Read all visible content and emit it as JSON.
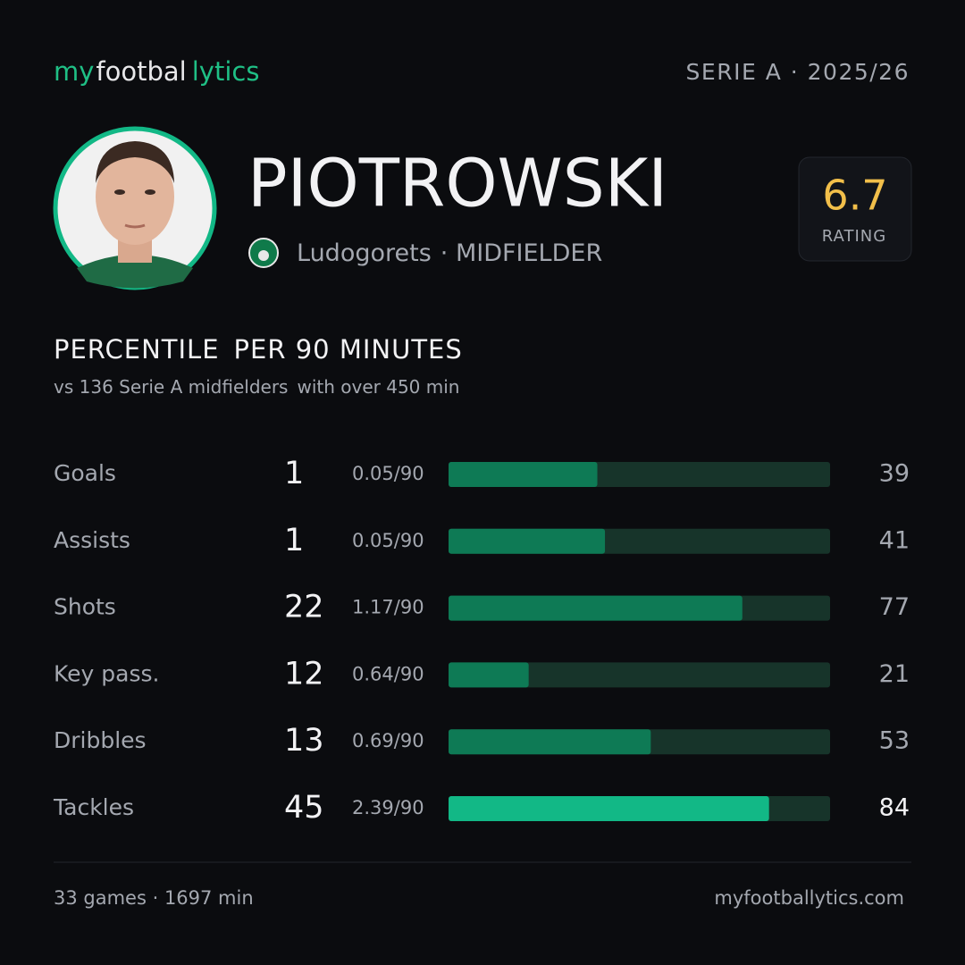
{
  "header": {
    "brand": [
      "my",
      "footbal",
      "lytics"
    ],
    "league": "SERIE A · 2025/26"
  },
  "player": {
    "name": "PIOTROWSKI",
    "club": "Ludogorets",
    "position": "· MIDFIELDER",
    "rating": 6.7,
    "rating_label": "RATING"
  },
  "section": {
    "title": [
      "PERCENTILE",
      "PER 90 MINUTES"
    ],
    "subtitle": [
      "vs 136 Serie A midfielders",
      "with over 450 min"
    ]
  },
  "stats": {
    "scale": [
      0,
      100
    ],
    "bar_color": "#0e7a55",
    "highlight_color": "#12b886",
    "track_color": "#17342a",
    "rows": [
      {
        "name": "Goals",
        "total": 1,
        "per90": "0.05/90",
        "percentile": 39,
        "highlight": false
      },
      {
        "name": "Assists",
        "total": 1,
        "per90": "0.05/90",
        "percentile": 41,
        "highlight": false
      },
      {
        "name": "Shots",
        "total": 22,
        "per90": "1.17/90",
        "percentile": 77,
        "highlight": false
      },
      {
        "name": "Key pass.",
        "total": 12,
        "per90": "0.64/90",
        "percentile": 21,
        "highlight": false
      },
      {
        "name": "Dribbles",
        "total": 13,
        "per90": "0.69/90",
        "percentile": 53,
        "highlight": false
      },
      {
        "name": "Tackles",
        "total": 45,
        "per90": "2.39/90",
        "percentile": 84,
        "highlight": true
      }
    ]
  },
  "footer": {
    "summary": "33 games · 1697 min",
    "site": "myfootballytics.com"
  }
}
